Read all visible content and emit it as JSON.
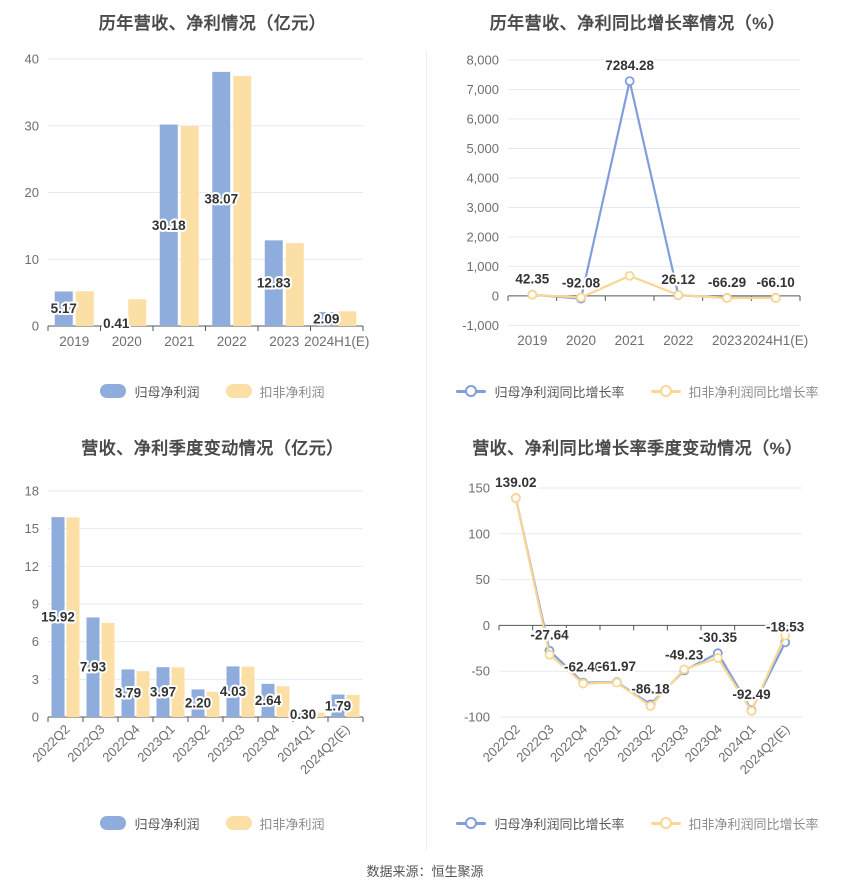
{
  "page": {
    "background": "#FFFFFF",
    "source_note": "数据来源：恒生聚源"
  },
  "colors": {
    "blue_bar": "#8FADDC",
    "yellow_bar": "#FCDFA4",
    "blue_line": "#7F9EDA",
    "yellow_line": "#F9D793",
    "grid_line": "#E4EAF5",
    "axis_line": "#555555",
    "tick_text": "#6E6E6E",
    "data_label": "#333333",
    "title_text": "#4A4A4A",
    "divider": "#EEEEEE"
  },
  "chart_data": [
    {
      "type": "bar",
      "title": "历年营收、净利情况（亿元）",
      "categories": [
        "2019",
        "2020",
        "2021",
        "2022",
        "2023",
        "2024H1(E)"
      ],
      "series": [
        {
          "name": "归母净利润",
          "color_key": "blue_bar",
          "labeled": true,
          "values": [
            5.17,
            0.41,
            30.18,
            38.07,
            12.83,
            2.09
          ]
        },
        {
          "name": "扣非净利润",
          "color_key": "yellow_bar",
          "labeled": false,
          "values": [
            5.2,
            4.0,
            29.95,
            37.45,
            12.4,
            2.2
          ]
        }
      ],
      "ylim": [
        0,
        40
      ],
      "yticks": [
        0,
        10,
        20,
        30,
        40
      ],
      "grid": true,
      "legend_position": "bottom"
    },
    {
      "type": "line",
      "title": "历年营收、净利同比增长率情况（%）",
      "categories": [
        "2019",
        "2020",
        "2021",
        "2022",
        "2023",
        "2024H1(E)"
      ],
      "series": [
        {
          "name": "归母净利润同比增长率",
          "color_key": "blue_line",
          "labeled": true,
          "values": [
            42.35,
            -92.08,
            7284.28,
            26.12,
            -66.29,
            -66.1
          ]
        },
        {
          "name": "扣非净利润同比增长率",
          "color_key": "yellow_line",
          "labeled": false,
          "values": [
            40,
            -55,
            680,
            30,
            -70,
            -70
          ]
        }
      ],
      "ylim": [
        -1000,
        8000
      ],
      "yticks": [
        -1000,
        0,
        1000,
        2000,
        3000,
        4000,
        5000,
        6000,
        7000,
        8000
      ],
      "grid": true,
      "legend_position": "bottom"
    },
    {
      "type": "bar",
      "title": "营收、净利季度变动情况（亿元）",
      "categories": [
        "2022Q2",
        "2022Q3",
        "2022Q4",
        "2023Q1",
        "2023Q2",
        "2023Q3",
        "2023Q4",
        "2024Q1",
        "2024Q2(E)"
      ],
      "series": [
        {
          "name": "归母净利润",
          "color_key": "blue_bar",
          "labeled": true,
          "values": [
            15.92,
            7.93,
            3.79,
            3.97,
            2.2,
            4.03,
            2.64,
            0.3,
            1.79
          ]
        },
        {
          "name": "扣非净利润",
          "color_key": "yellow_bar",
          "labeled": false,
          "values": [
            15.9,
            7.5,
            3.65,
            3.95,
            2.0,
            4.0,
            2.45,
            0.35,
            1.75
          ]
        }
      ],
      "ylim": [
        0,
        18
      ],
      "yticks": [
        0,
        3,
        6,
        9,
        12,
        15,
        18
      ],
      "grid": true,
      "legend_position": "bottom"
    },
    {
      "type": "line",
      "title": "营收、净利同比增长率季度变动情况（%）",
      "categories": [
        "2022Q2",
        "2022Q3",
        "2022Q4",
        "2023Q1",
        "2023Q2",
        "2023Q3",
        "2023Q4",
        "2024Q1",
        "2024Q2(E)"
      ],
      "series": [
        {
          "name": "归母净利润同比增长率",
          "color_key": "blue_line",
          "labeled": true,
          "values": [
            139.02,
            -27.64,
            -62.46,
            -61.97,
            -86.18,
            -49.23,
            -30.35,
            -92.49,
            -18.53
          ]
        },
        {
          "name": "扣非净利润同比增长率",
          "color_key": "yellow_line",
          "labeled": false,
          "values": [
            139.02,
            -32,
            -63.5,
            -62.5,
            -88,
            -48,
            -35.5,
            -93.5,
            -11
          ]
        }
      ],
      "ylim": [
        -100,
        150
      ],
      "yticks": [
        -100,
        -50,
        0,
        50,
        100,
        150
      ],
      "grid": true,
      "legend_position": "bottom"
    }
  ]
}
